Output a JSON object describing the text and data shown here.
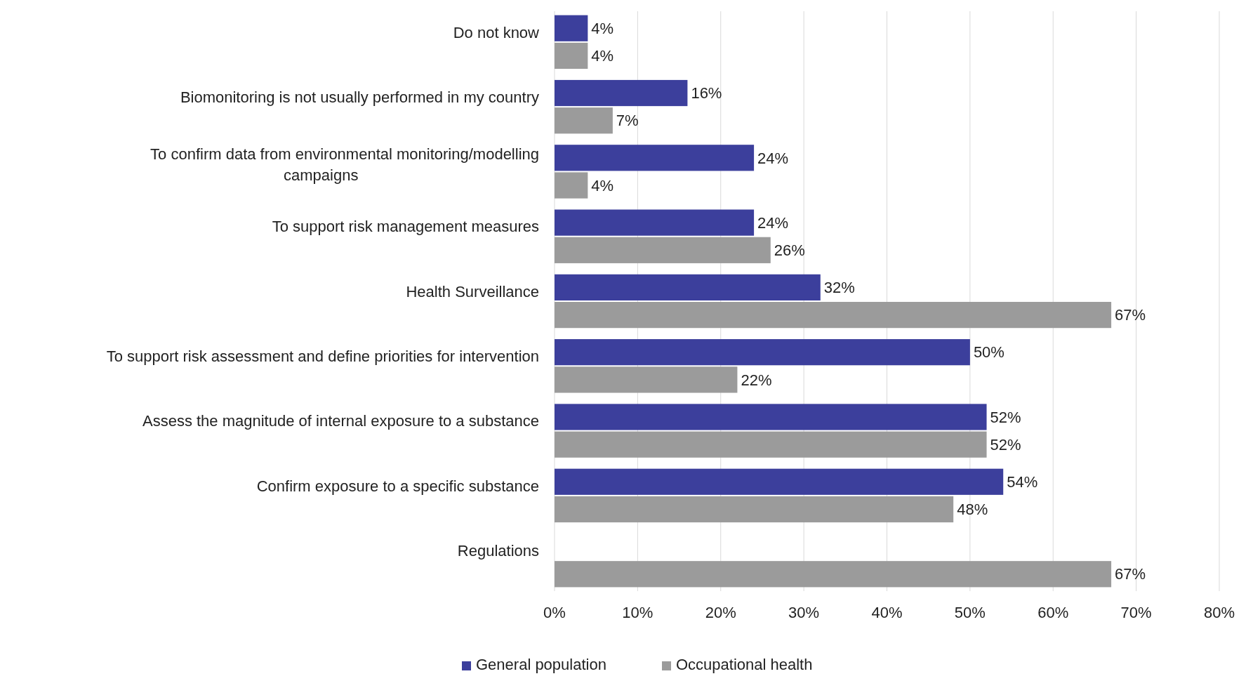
{
  "chart_data": {
    "type": "bar",
    "orientation": "horizontal",
    "categories": [
      "Do not know",
      "Biomonitoring is not usually performed in my country",
      "To confirm data from environmental monitoring/modelling\ncampaigns",
      "To support risk management measures",
      "Health Surveillance",
      "To support risk assessment and define priorities for intervention",
      "Assess the magnitude of internal exposure to a substance",
      "Confirm exposure to a specific substance",
      "Regulations"
    ],
    "series": [
      {
        "name": "General population",
        "color": "#3c3f9c",
        "values": [
          4,
          16,
          24,
          24,
          32,
          50,
          52,
          54,
          null
        ],
        "value_labels": [
          "4%",
          "16%",
          "24%",
          "24%",
          "32%",
          "50%",
          "52%",
          "54%",
          null
        ]
      },
      {
        "name": "Occupational health",
        "color": "#9b9b9b",
        "values": [
          4,
          7,
          4,
          26,
          67,
          22,
          52,
          48,
          67
        ],
        "value_labels": [
          "4%",
          "7%",
          "4%",
          "26%",
          "67%",
          "22%",
          "52%",
          "48%",
          "67%"
        ]
      }
    ],
    "xlim": [
      0,
      80
    ],
    "xticks": [
      {
        "value": 0,
        "label": "0%"
      },
      {
        "value": 10,
        "label": "10%"
      },
      {
        "value": 20,
        "label": "20%"
      },
      {
        "value": 30,
        "label": "30%"
      },
      {
        "value": 40,
        "label": "40%"
      },
      {
        "value": 50,
        "label": "50%"
      },
      {
        "value": 60,
        "label": "60%"
      },
      {
        "value": 70,
        "label": "70%"
      },
      {
        "value": 80,
        "label": "80%"
      }
    ],
    "grid": "x",
    "legend": "bottom"
  }
}
